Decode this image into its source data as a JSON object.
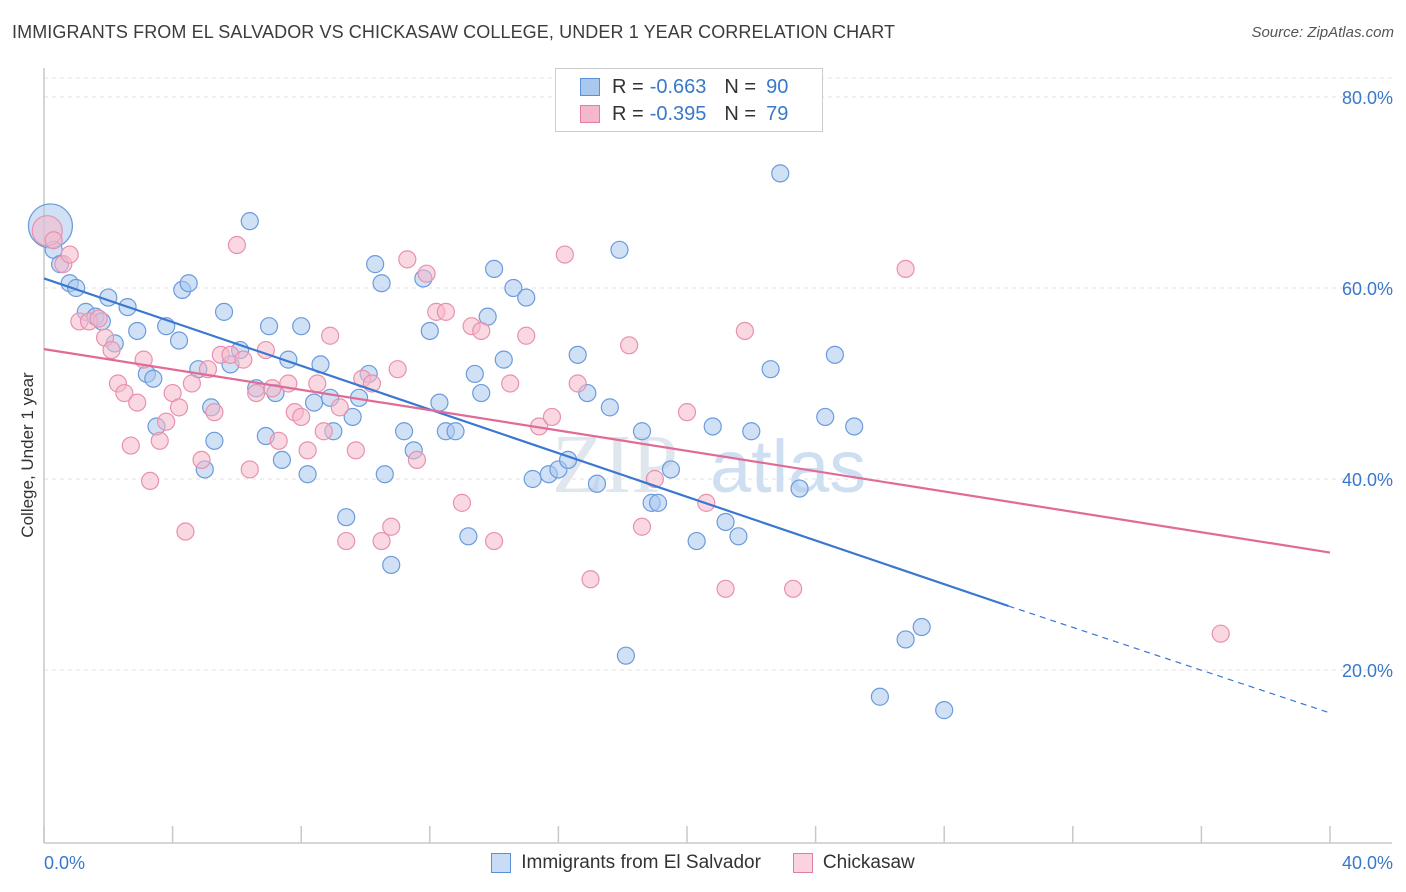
{
  "title": "IMMIGRANTS FROM EL SALVADOR VS CHICKASAW COLLEGE, UNDER 1 YEAR CORRELATION CHART",
  "source": "Source: ZipAtlas.com",
  "watermark": {
    "zip": "ZIP",
    "atlas": "atlas"
  },
  "legend": {
    "rows": [
      {
        "r_label": "R =",
        "r_value": "-0.663",
        "n_label": "N =",
        "n_value": "90",
        "color": "#a9c8ef"
      },
      {
        "r_label": "R =",
        "r_value": "-0.395",
        "n_label": "N =",
        "n_value": "79",
        "color": "#f5b8cb"
      }
    ]
  },
  "bottom_legend": [
    {
      "label": "Immigrants from El Salvador",
      "color": "#a9c8ef"
    },
    {
      "label": "Chickasaw",
      "color": "#f5b8cb"
    }
  ],
  "chart_data": {
    "type": "scatter",
    "title": "IMMIGRANTS FROM EL SALVADOR VS CHICKASAW COLLEGE, UNDER 1 YEAR CORRELATION CHART",
    "xlabel": "",
    "ylabel": "College, Under 1 year",
    "xlim": [
      0,
      40
    ],
    "ylim": [
      0,
      82
    ],
    "x_tick_labels": [
      "0.0%",
      "40.0%"
    ],
    "y_ticks": [
      20,
      40,
      60,
      80
    ],
    "y_tick_labels": [
      "20.0%",
      "40.0%",
      "60.0%",
      "80.0%"
    ],
    "grid": true,
    "legend_position": "top-center",
    "series": [
      {
        "name": "Immigrants from El Salvador",
        "color": "#3a78d0",
        "fill": "#a9c8ef",
        "trend": {
          "x0": 0,
          "y0": 61.0,
          "x1": 30,
          "y1": 26.7,
          "x_dash_end": 40,
          "y_dash_end": 15.5
        },
        "points": [
          [
            0.2,
            66.5
          ],
          [
            0.3,
            64
          ],
          [
            0.5,
            62.5
          ],
          [
            0.8,
            60.5
          ],
          [
            1,
            60
          ],
          [
            1.3,
            57.5
          ],
          [
            1.6,
            57
          ],
          [
            1.8,
            56.5
          ],
          [
            2,
            59
          ],
          [
            2.2,
            54.2
          ],
          [
            2.6,
            58
          ],
          [
            2.9,
            55.5
          ],
          [
            3.2,
            51
          ],
          [
            3.4,
            50.5
          ],
          [
            3.5,
            45.5
          ],
          [
            3.8,
            56
          ],
          [
            4.2,
            54.5
          ],
          [
            4.3,
            59.8
          ],
          [
            4.5,
            60.5
          ],
          [
            4.8,
            51.5
          ],
          [
            5,
            41
          ],
          [
            5.2,
            47.5
          ],
          [
            5.3,
            44
          ],
          [
            5.6,
            57.5
          ],
          [
            5.8,
            52
          ],
          [
            6.1,
            53.5
          ],
          [
            6.4,
            67
          ],
          [
            6.6,
            49.5
          ],
          [
            6.9,
            44.5
          ],
          [
            7,
            56
          ],
          [
            7.2,
            49
          ],
          [
            7.4,
            42
          ],
          [
            7.6,
            52.5
          ],
          [
            8,
            56
          ],
          [
            8.2,
            40.5
          ],
          [
            8.4,
            48
          ],
          [
            8.6,
            52
          ],
          [
            8.9,
            48.5
          ],
          [
            9,
            45
          ],
          [
            9.4,
            36
          ],
          [
            9.6,
            46.5
          ],
          [
            9.8,
            48.5
          ],
          [
            10.1,
            51
          ],
          [
            10.3,
            62.5
          ],
          [
            10.5,
            60.5
          ],
          [
            10.6,
            40.5
          ],
          [
            10.8,
            31
          ],
          [
            11.2,
            45
          ],
          [
            11.5,
            43
          ],
          [
            11.8,
            61
          ],
          [
            12,
            55.5
          ],
          [
            12.3,
            48
          ],
          [
            12.5,
            45
          ],
          [
            12.8,
            45
          ],
          [
            13.2,
            34
          ],
          [
            13.4,
            51
          ],
          [
            13.6,
            49
          ],
          [
            13.8,
            57
          ],
          [
            14,
            62
          ],
          [
            14.3,
            52.5
          ],
          [
            14.6,
            60
          ],
          [
            15,
            59
          ],
          [
            15.2,
            40
          ],
          [
            15.7,
            40.5
          ],
          [
            16,
            41
          ],
          [
            16.3,
            42
          ],
          [
            16.6,
            53
          ],
          [
            16.9,
            49
          ],
          [
            17.2,
            39.5
          ],
          [
            17.6,
            47.5
          ],
          [
            17.9,
            64
          ],
          [
            18.1,
            21.5
          ],
          [
            18.6,
            45
          ],
          [
            18.9,
            37.5
          ],
          [
            19.1,
            37.5
          ],
          [
            19.5,
            41
          ],
          [
            20.3,
            33.5
          ],
          [
            20.8,
            45.5
          ],
          [
            21.2,
            35.5
          ],
          [
            21.6,
            34
          ],
          [
            22,
            45
          ],
          [
            22.6,
            51.5
          ],
          [
            22.9,
            72
          ],
          [
            23.5,
            39
          ],
          [
            24.3,
            46.5
          ],
          [
            24.6,
            53
          ],
          [
            25.2,
            45.5
          ],
          [
            26,
            17.2
          ],
          [
            26.8,
            23.2
          ],
          [
            27.3,
            24.5
          ],
          [
            28,
            15.8
          ]
        ]
      },
      {
        "name": "Chickasaw",
        "color": "#e06b96",
        "fill": "#f5b8cb",
        "trend": {
          "x0": 0,
          "y0": 53.6,
          "x1": 40,
          "y1": 32.3
        },
        "points": [
          [
            0.1,
            66
          ],
          [
            0.3,
            65
          ],
          [
            0.6,
            62.5
          ],
          [
            0.8,
            63.5
          ],
          [
            1.1,
            56.5
          ],
          [
            1.4,
            56.5
          ],
          [
            1.7,
            56.8
          ],
          [
            1.9,
            54.8
          ],
          [
            2.1,
            53.5
          ],
          [
            2.3,
            50
          ],
          [
            2.5,
            49
          ],
          [
            2.7,
            43.5
          ],
          [
            2.9,
            48
          ],
          [
            3.1,
            52.5
          ],
          [
            3.3,
            39.8
          ],
          [
            3.6,
            44
          ],
          [
            3.8,
            46
          ],
          [
            4,
            49
          ],
          [
            4.2,
            47.5
          ],
          [
            4.4,
            34.5
          ],
          [
            4.6,
            50
          ],
          [
            4.9,
            42
          ],
          [
            5.1,
            51.5
          ],
          [
            5.3,
            47
          ],
          [
            5.5,
            53
          ],
          [
            5.8,
            53
          ],
          [
            6,
            64.5
          ],
          [
            6.2,
            52.5
          ],
          [
            6.4,
            41
          ],
          [
            6.6,
            49
          ],
          [
            6.9,
            53.5
          ],
          [
            7.1,
            49.5
          ],
          [
            7.3,
            44
          ],
          [
            7.6,
            50
          ],
          [
            7.8,
            47
          ],
          [
            8,
            46.5
          ],
          [
            8.2,
            43
          ],
          [
            8.5,
            50
          ],
          [
            8.7,
            45
          ],
          [
            8.9,
            55
          ],
          [
            9.2,
            47.5
          ],
          [
            9.4,
            33.5
          ],
          [
            9.7,
            43
          ],
          [
            9.9,
            50.5
          ],
          [
            10.2,
            50
          ],
          [
            10.5,
            33.5
          ],
          [
            10.8,
            35
          ],
          [
            11,
            51.5
          ],
          [
            11.3,
            63
          ],
          [
            11.6,
            42
          ],
          [
            11.9,
            61.5
          ],
          [
            12.2,
            57.5
          ],
          [
            12.5,
            57.5
          ],
          [
            13,
            37.5
          ],
          [
            13.3,
            56
          ],
          [
            13.6,
            55.5
          ],
          [
            14,
            33.5
          ],
          [
            14.5,
            50
          ],
          [
            15,
            55
          ],
          [
            15.4,
            45.5
          ],
          [
            15.8,
            46.5
          ],
          [
            16.2,
            63.5
          ],
          [
            16.6,
            50
          ],
          [
            17,
            29.5
          ],
          [
            18.2,
            54
          ],
          [
            18.6,
            35
          ],
          [
            19,
            40
          ],
          [
            20,
            47
          ],
          [
            20.6,
            37.5
          ],
          [
            21.2,
            28.5
          ],
          [
            21.8,
            55.5
          ],
          [
            23.3,
            28.5
          ],
          [
            26.8,
            62
          ],
          [
            36.6,
            23.8
          ]
        ]
      }
    ]
  }
}
